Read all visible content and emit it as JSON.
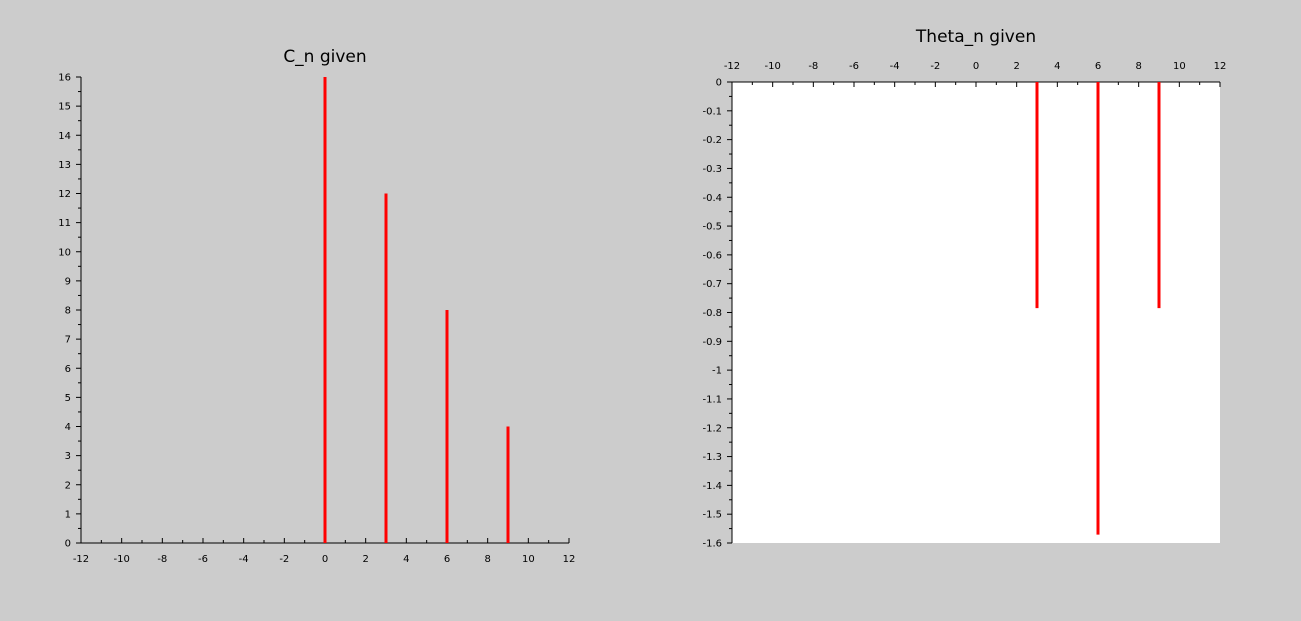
{
  "chart_data": [
    {
      "type": "stem",
      "title": "C_n given",
      "xlabel": "",
      "ylabel": "",
      "xlim": [
        -12,
        12
      ],
      "ylim": [
        0,
        16
      ],
      "x_ticks": [
        "-12",
        "-10",
        "-8",
        "-6",
        "-4",
        "-2",
        "0",
        "2",
        "4",
        "6",
        "8",
        "10",
        "12"
      ],
      "y_ticks": [
        "0",
        "1",
        "2",
        "3",
        "4",
        "5",
        "6",
        "7",
        "8",
        "9",
        "10",
        "11",
        "12",
        "13",
        "14",
        "15",
        "16"
      ],
      "x_axis_position": "bottom",
      "plot_background": "#cccccc",
      "series": [
        {
          "x": [
            0,
            3,
            6,
            9
          ],
          "y": [
            16,
            12,
            8,
            4
          ],
          "color": "#ff0000"
        }
      ]
    },
    {
      "type": "stem",
      "title": "Theta_n given",
      "xlabel": "",
      "ylabel": "",
      "xlim": [
        -12,
        12
      ],
      "ylim": [
        -1.6,
        0
      ],
      "x_ticks": [
        "-12",
        "-10",
        "-8",
        "-6",
        "-4",
        "-2",
        "0",
        "2",
        "4",
        "6",
        "8",
        "10",
        "12"
      ],
      "y_ticks": [
        "0",
        "-0.1",
        "-0.2",
        "-0.3",
        "-0.4",
        "-0.5",
        "-0.6",
        "-0.7",
        "-0.8",
        "-0.9",
        "-1",
        "-1.1",
        "-1.2",
        "-1.3",
        "-1.4",
        "-1.5",
        "-1.6"
      ],
      "x_axis_position": "top",
      "plot_background": "#ffffff",
      "series": [
        {
          "x": [
            3,
            6,
            9
          ],
          "y": [
            -0.785,
            -1.571,
            -0.785
          ],
          "color": "#ff0000"
        }
      ]
    }
  ]
}
